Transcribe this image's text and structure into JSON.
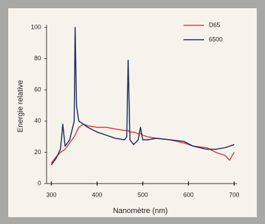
{
  "chart_data": {
    "type": "line",
    "x_label": "Nanomètre (nm)",
    "y_label": "Energie relative",
    "x": [
      300,
      310,
      320,
      325,
      330,
      340,
      350,
      352,
      355,
      360,
      370,
      380,
      400,
      420,
      440,
      460,
      465,
      468,
      472,
      480,
      490,
      495,
      500,
      510,
      530,
      560,
      590,
      610,
      640,
      660,
      680,
      690,
      700
    ],
    "series": [
      {
        "name": "D65",
        "color": "#e03a3a",
        "values": [
          13,
          17,
          20,
          21,
          22,
          26,
          30,
          31,
          33,
          36,
          38,
          37,
          36,
          36,
          35,
          34,
          34,
          34,
          33,
          33,
          32,
          32,
          31,
          30,
          29,
          28,
          26,
          24,
          23,
          20,
          18,
          15,
          20
        ]
      },
      {
        "name": "6500",
        "color": "#1c2a5e",
        "values": [
          12,
          16,
          22,
          38,
          24,
          28,
          40,
          100,
          50,
          40,
          38,
          36,
          33,
          31,
          29,
          28,
          30,
          79,
          28,
          25,
          28,
          36,
          28,
          28,
          29,
          28,
          27,
          24,
          22,
          22,
          23,
          24,
          25
        ]
      }
    ],
    "xlim": [
      300,
      700
    ],
    "xticks": [
      300,
      400,
      500,
      600,
      700
    ],
    "ylim": [
      0,
      100
    ],
    "yticks": [
      0,
      20,
      40,
      60,
      80,
      100
    ],
    "legend": "top-right"
  }
}
